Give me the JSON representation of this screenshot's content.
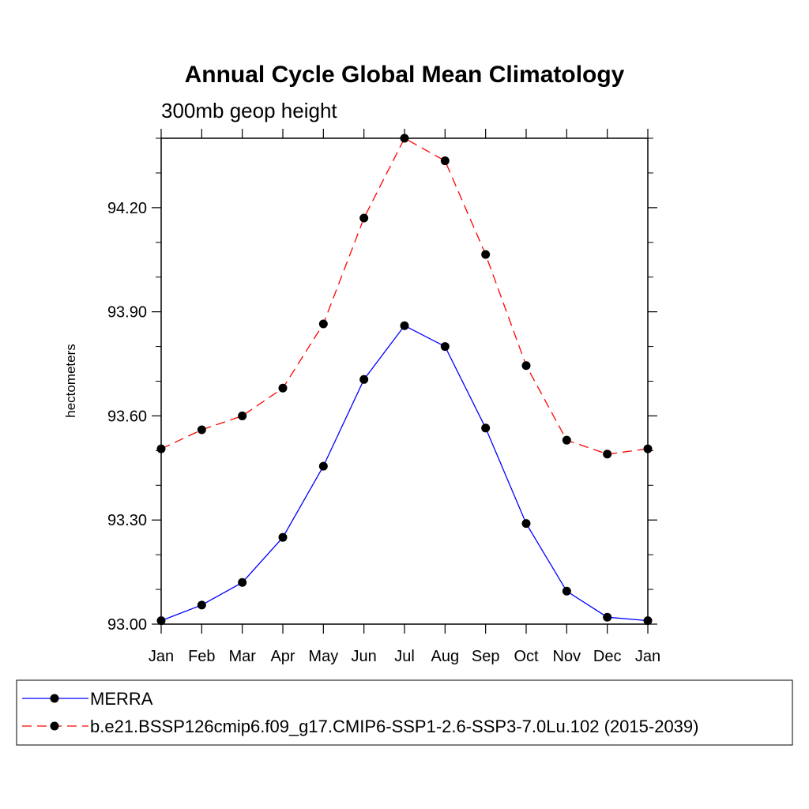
{
  "chart_data": {
    "type": "line",
    "title": "Annual Cycle Global Mean Climatology",
    "subtitle": "300mb geop height",
    "ylabel": "hectometers",
    "xlabel": "",
    "categories": [
      "Jan",
      "Feb",
      "Mar",
      "Apr",
      "May",
      "Jun",
      "Jul",
      "Aug",
      "Sep",
      "Oct",
      "Nov",
      "Dec",
      "Jan"
    ],
    "ylim": [
      93.0,
      94.4
    ],
    "yticks": [
      93.0,
      93.3,
      93.6,
      93.9,
      94.2
    ],
    "ytick_labels": [
      "93.00",
      "93.30",
      "93.60",
      "93.90",
      "94.20"
    ],
    "grid": false,
    "legend_position": "bottom",
    "series": [
      {
        "name": "MERRA",
        "color": "#0000ff",
        "line_style": "solid",
        "marker": "filled-circle",
        "values": [
          93.01,
          93.055,
          93.12,
          93.25,
          93.455,
          93.705,
          93.86,
          93.8,
          93.565,
          93.29,
          93.095,
          93.02,
          93.01
        ]
      },
      {
        "name": "b.e21.BSSP126cmip6.f09_g17.CMIP6-SSP1-2.6-SSP3-7.0Lu.102 (2015-2039)",
        "color": "#ff0000",
        "line_style": "dashed",
        "marker": "filled-circle",
        "values": [
          93.505,
          93.56,
          93.6,
          93.68,
          93.865,
          94.17,
          94.4,
          94.335,
          94.065,
          93.745,
          93.53,
          93.49,
          93.505
        ]
      }
    ]
  }
}
